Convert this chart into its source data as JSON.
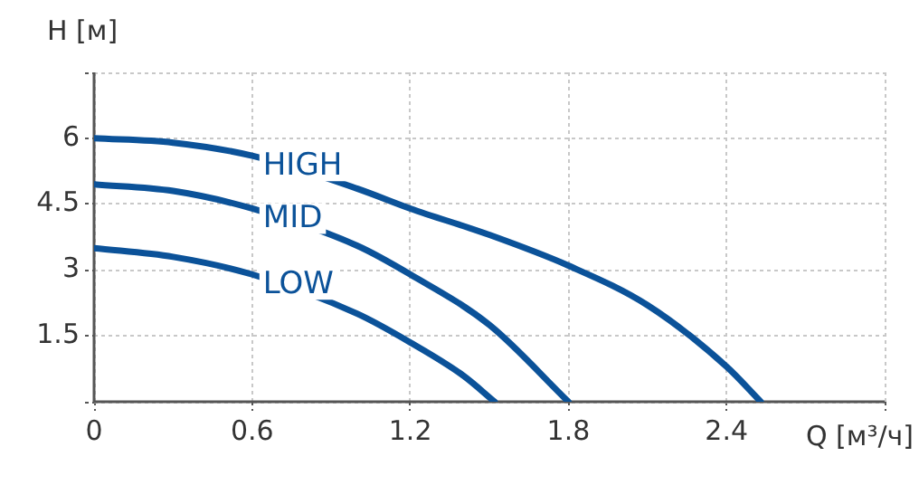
{
  "chart_data": {
    "type": "line",
    "xlabel": "Q [м³/ч]",
    "ylabel": "H [м]",
    "xlim": [
      0,
      3.0
    ],
    "xticks": [
      0,
      0.6,
      1.2,
      1.8,
      2.4,
      {
        "value": 3.0,
        "label": null
      }
    ],
    "ylim": [
      0,
      7.5
    ],
    "yticks": [
      {
        "value": 0,
        "label": null
      },
      1.5,
      3,
      4.5,
      6,
      {
        "value": 7.5,
        "label": null
      }
    ],
    "grid": true,
    "legend": false,
    "marker": "none",
    "line_style": "solid",
    "series": [
      {
        "name": "HIGH",
        "color": "#0b5299",
        "x": [
          0,
          0.3,
          0.6,
          1.0,
          1.2,
          1.5,
          1.8,
          2.1,
          2.4,
          2.53
        ],
        "values": [
          6,
          5.9,
          5.6,
          4.85,
          4.4,
          3.8,
          3.1,
          2.2,
          0.8,
          0
        ]
      },
      {
        "name": "MID",
        "color": "#0b5299",
        "x": [
          0,
          0.3,
          0.6,
          1.0,
          1.2,
          1.5,
          1.8
        ],
        "values": [
          4.95,
          4.8,
          4.4,
          3.55,
          2.9,
          1.75,
          0
        ]
      },
      {
        "name": "LOW",
        "color": "#0b5299",
        "x": [
          0,
          0.3,
          0.6,
          1.0,
          1.2,
          1.4,
          1.52
        ],
        "values": [
          3.5,
          3.3,
          2.9,
          2.0,
          1.35,
          0.6,
          0
        ]
      }
    ]
  }
}
